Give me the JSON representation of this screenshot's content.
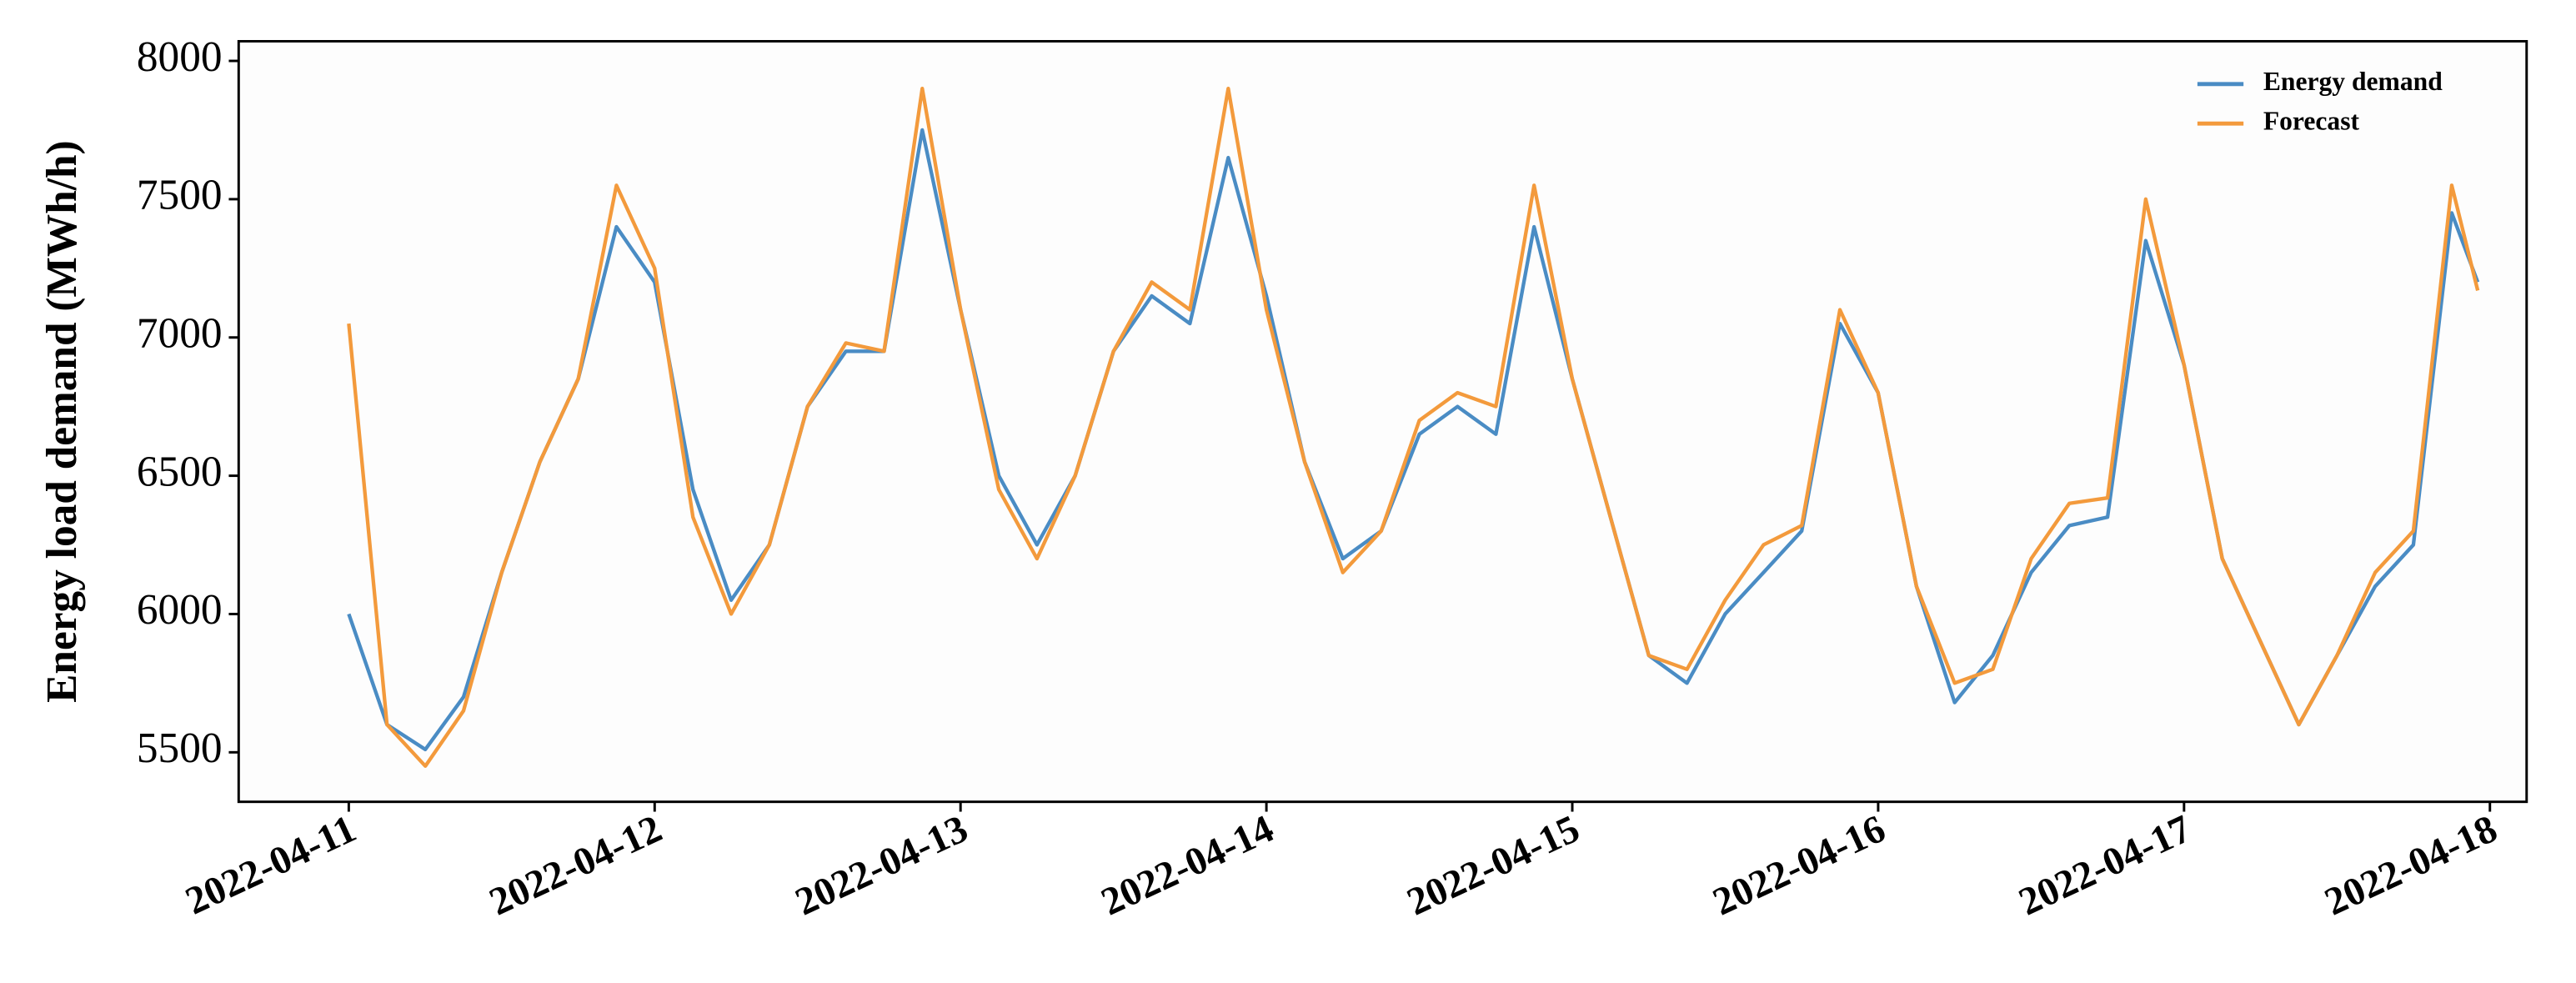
{
  "chart_data": {
    "type": "line",
    "ylabel": "Energy load demand (MWh/h)",
    "x": [
      0,
      0.125,
      0.25,
      0.375,
      0.5,
      0.625,
      0.75,
      0.875,
      1,
      1.125,
      1.25,
      1.375,
      1.5,
      1.625,
      1.75,
      1.875,
      2,
      2.125,
      2.25,
      2.375,
      2.5,
      2.625,
      2.75,
      2.875,
      3,
      3.125,
      3.25,
      3.375,
      3.5,
      3.625,
      3.75,
      3.875,
      4,
      4.125,
      4.25,
      4.375,
      4.5,
      4.625,
      4.75,
      4.875,
      5,
      5.125,
      5.25,
      5.375,
      5.5,
      5.625,
      5.75,
      5.875,
      6,
      6.125,
      6.25,
      6.375,
      6.5,
      6.625,
      6.75,
      6.875,
      6.96
    ],
    "series": [
      {
        "name": "Energy demand",
        "color": "#4a8cc4",
        "values": [
          6000,
          5600,
          5510,
          5700,
          6150,
          6550,
          6850,
          7400,
          7200,
          6450,
          6050,
          6250,
          6750,
          6950,
          6950,
          7750,
          7100,
          6500,
          6250,
          6500,
          6950,
          7150,
          7050,
          7650,
          7150,
          6550,
          6200,
          6300,
          6650,
          6750,
          6650,
          7400,
          6850,
          6350,
          5850,
          5750,
          6000,
          6150,
          6300,
          7050,
          6800,
          6100,
          5680,
          5850,
          6150,
          6320,
          6350,
          7350,
          6900,
          6200,
          5900,
          5600,
          5850,
          6100,
          6250,
          7450,
          7200
        ]
      },
      {
        "name": "Forecast",
        "color": "#f39a3c",
        "values": [
          7050,
          5600,
          5450,
          5650,
          6150,
          6550,
          6850,
          7550,
          7250,
          6350,
          6000,
          6250,
          6750,
          6980,
          6950,
          7900,
          7100,
          6450,
          6200,
          6500,
          6950,
          7200,
          7100,
          7900,
          7100,
          6550,
          6150,
          6300,
          6700,
          6800,
          6750,
          7550,
          6850,
          6350,
          5850,
          5800,
          6050,
          6250,
          6320,
          7100,
          6800,
          6100,
          5750,
          5800,
          6200,
          6400,
          6420,
          7500,
          6900,
          6200,
          5900,
          5600,
          5850,
          6150,
          6300,
          7550,
          7170
        ]
      }
    ],
    "xlim": [
      -0.36,
      7.12
    ],
    "xticks": [
      {
        "value": 0,
        "label": "2022-04-11"
      },
      {
        "value": 1,
        "label": "2022-04-12"
      },
      {
        "value": 2,
        "label": "2022-04-13"
      },
      {
        "value": 3,
        "label": "2022-04-14"
      },
      {
        "value": 4,
        "label": "2022-04-15"
      },
      {
        "value": 5,
        "label": "2022-04-16"
      },
      {
        "value": 6,
        "label": "2022-04-17"
      },
      {
        "value": 7,
        "label": "2022-04-18"
      }
    ],
    "ylim": [
      5321,
      8071
    ],
    "yticks": [
      5500,
      6000,
      6500,
      7000,
      7500,
      8000
    ],
    "legend": "upper right"
  }
}
